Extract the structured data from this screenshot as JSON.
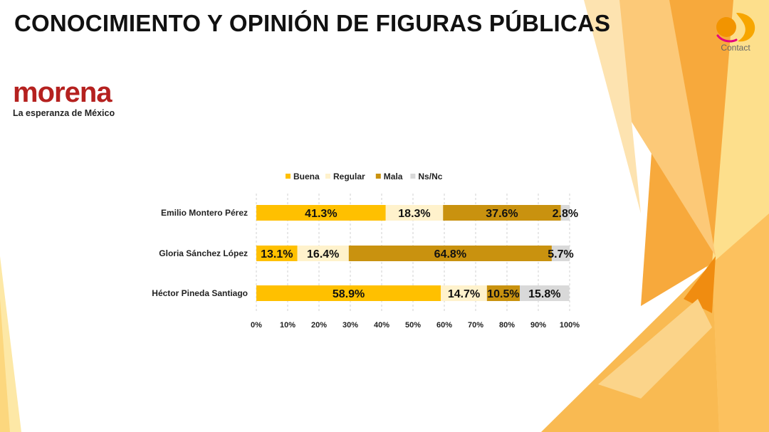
{
  "slide": {
    "title": "CONOCIMIENTO Y OPINIÓN DE FIGURAS PÚBLICAS",
    "party_logo": {
      "name": "morena",
      "tagline": "La esperanza de México",
      "color": "#b5211f"
    },
    "brand_logo": {
      "name": "Contact",
      "color": "#f29400"
    }
  },
  "chart_data": {
    "type": "bar",
    "orientation": "horizontal",
    "stacked": true,
    "legend_position": "top",
    "categories": [
      "Emilio Montero Pérez",
      "Gloria Sánchez López",
      "Héctor Pineda Santiago"
    ],
    "series": [
      {
        "name": "Buena",
        "color": "#ffc000",
        "values": [
          41.3,
          13.1,
          58.9
        ],
        "labels": [
          "41.3%",
          "13.1%",
          "58.9%"
        ]
      },
      {
        "name": "Regular",
        "color": "#fff2cc",
        "values": [
          18.3,
          16.4,
          14.7
        ],
        "labels": [
          "18.3%",
          "16.4%",
          "14.7%"
        ]
      },
      {
        "name": "Mala",
        "color": "#c9920f",
        "values": [
          37.6,
          64.8,
          10.5
        ],
        "labels": [
          "37.6%",
          "64.8%",
          "10.5%"
        ]
      },
      {
        "name": "Ns/Nc",
        "color": "#d9d9d9",
        "values": [
          2.8,
          5.7,
          15.8
        ],
        "labels": [
          "2.8%",
          "5.7%",
          "15.8%"
        ]
      }
    ],
    "xlim": [
      0,
      100
    ],
    "ticks": [
      "0%",
      "10%",
      "20%",
      "30%",
      "40%",
      "50%",
      "60%",
      "70%",
      "80%",
      "90%",
      "100%"
    ],
    "grid": true
  }
}
